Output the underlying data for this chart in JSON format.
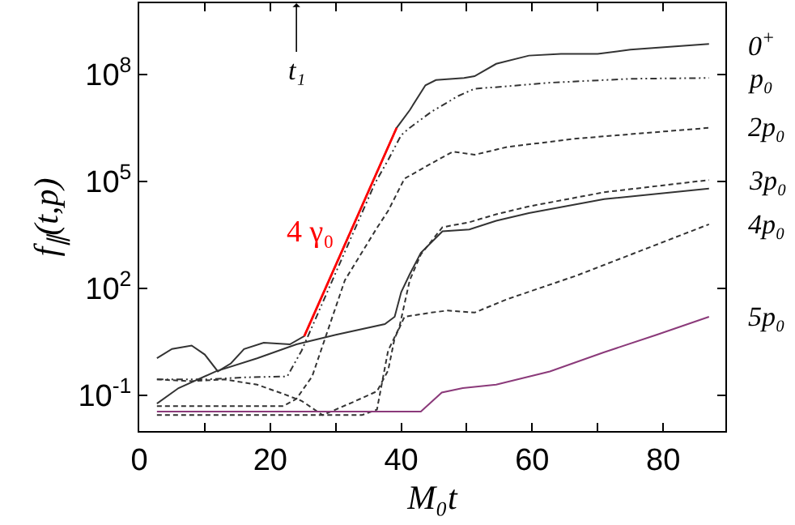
{
  "chart_data": {
    "type": "line",
    "xlabel": "M₀t",
    "ylabel": "f$_{∥}$(t,p)",
    "xlim": [
      0,
      89.5
    ],
    "xticks": [
      0,
      {
        "value": 10,
        "label": null
      },
      20,
      {
        "value": 30,
        "label": null
      },
      40,
      {
        "value": 50,
        "label": null
      },
      60,
      {
        "value": 70,
        "label": null
      },
      80
    ],
    "ylim": [
      0.01,
      10000000000
    ],
    "log": "y",
    "yticks": [
      {
        "value": 0.1,
        "label": "10$^{-1}$"
      },
      {
        "value": 100,
        "label": "10$^{2}$"
      },
      {
        "value": 100000,
        "label": "10$^{5}$"
      },
      {
        "value": 100000000,
        "label": "10$^{8}$"
      }
    ],
    "legend": false,
    "marker": "none",
    "annotations": [
      {
        "text": "t₁",
        "x": 24,
        "y": 10000000000
      }
    ],
    "series": [
      {
        "name": "0$^{+}$",
        "color": "#333333",
        "line_style": "solid",
        "x": [
          2.7,
          5,
          8,
          10,
          12,
          14,
          16,
          19,
          23,
          25.2,
          39.3,
          41.3,
          43.7,
          45.3,
          49.6,
          51.2,
          54.5,
          59.5,
          64.4,
          70,
          75,
          87
        ],
        "values": [
          1.1,
          2.0,
          2.5,
          1.4,
          0.47,
          0.79,
          2.0,
          3.0,
          2.7,
          4.6,
          3200000,
          10000000,
          50000000,
          70000000,
          80000000,
          90000000,
          200000000,
          340000000,
          380000000,
          380000000,
          500000000,
          720000000
        ]
      },
      {
        "name": "4 γ₀",
        "color": "#ff0000",
        "line_style": "solid",
        "x": [
          25.2,
          39.3
        ],
        "values": [
          4.6,
          3200000
        ]
      },
      {
        "name": "p₀",
        "color": "#333333",
        "line_style": "dashdot",
        "x": [
          2.7,
          10,
          16,
          22.6,
          24.8,
          28,
          32,
          36,
          38,
          40,
          41.3,
          44.6,
          48.7,
          51.2,
          55,
          62.7,
          75,
          87
        ],
        "values": [
          0.28,
          0.28,
          0.32,
          0.34,
          1.8,
          40,
          1900,
          90000,
          400000,
          2000000,
          3200000,
          9000000,
          25000000,
          40000000,
          45000000,
          59000000,
          76000000,
          80000000
        ]
      },
      {
        "name": "2p₀",
        "color": "#333333",
        "line_style": "dashed",
        "x": [
          2.7,
          22,
          24,
          26.4,
          31.4,
          36.3,
          38,
          40.5,
          44.6,
          47.9,
          51.2,
          56.2,
          66.8,
          87
        ],
        "values": [
          0.05,
          0.05,
          0.08,
          0.34,
          170,
          5000,
          15000,
          120000,
          320000,
          690000,
          560000,
          930000,
          1600000,
          3200000
        ]
      },
      {
        "name": "3p₀",
        "color": "#333333",
        "line_style": "dashed",
        "x": [
          2.7,
          8,
          13,
          18,
          22,
          24.8,
          28,
          34,
          36.3,
          38,
          39.7,
          41.3,
          43,
          46.3,
          50.4,
          54.5,
          59.5,
          71,
          87
        ],
        "values": [
          0.28,
          0.25,
          0.28,
          0.2,
          0.11,
          0.07,
          0.028,
          0.028,
          0.04,
          1.8,
          7.9,
          170,
          900,
          5200,
          7200,
          12000,
          20000,
          50000,
          110000
        ]
      },
      {
        "color": "#333333",
        "line_style": "solid",
        "x": [
          2.7,
          6,
          11.7,
          18,
          24,
          30,
          37.5,
          39,
          40,
          41.3,
          43,
          46.3,
          50.4,
          54.5,
          59.5,
          71,
          87
        ],
        "values": [
          0.059,
          0.16,
          0.47,
          1.1,
          2.7,
          5,
          10,
          16,
          79,
          250,
          1000,
          4000,
          4500,
          7900,
          13000,
          32000,
          63000
        ]
      },
      {
        "name": "4p₀",
        "color": "#333333",
        "line_style": "dashed",
        "x": [
          2.7,
          28,
          32.5,
          36.3,
          38,
          39,
          40.5,
          44.6,
          47.1,
          51.2,
          56.2,
          66.8,
          87
        ],
        "values": [
          0.028,
          0.028,
          0.063,
          0.13,
          0.5,
          4,
          16,
          21,
          24,
          21,
          50,
          230,
          6300
        ]
      },
      {
        "name": "5p₀",
        "color": "#8b3a7a",
        "line_style": "solid",
        "x": [
          2.7,
          43,
          46.2,
          49.4,
          54.5,
          62.7,
          70.9,
          79,
          87
        ],
        "values": [
          0.035,
          0.035,
          0.12,
          0.16,
          0.2,
          0.47,
          1.6,
          5,
          16
        ]
      }
    ]
  }
}
